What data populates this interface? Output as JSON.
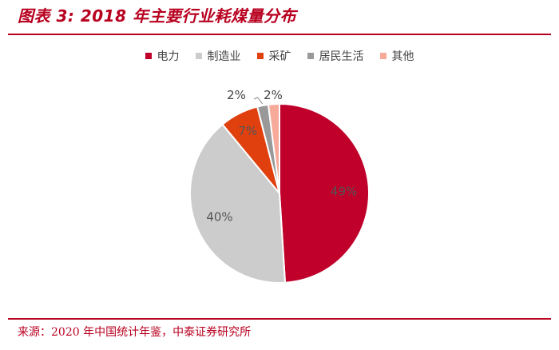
{
  "figure": {
    "title": "图表 3:  2018 年主要行业耗煤量分布",
    "source": "来源：2020 年中国统计年鉴，中泰证券研究所"
  },
  "chart_data": {
    "type": "pie",
    "categories": [
      "电力",
      "制造业",
      "采矿",
      "居民生活",
      "其他"
    ],
    "values": [
      49,
      40,
      7,
      2,
      2
    ],
    "value_labels": [
      "49%",
      "40%",
      "7%",
      "2%",
      "2%"
    ],
    "colors": [
      "#c0002a",
      "#cccccc",
      "#e0400e",
      "#999999",
      "#f7a99a"
    ],
    "label_colors": [
      "#555555",
      "#555555",
      "#555555",
      "#444444",
      "#444444"
    ],
    "legend_position": "top",
    "start_angle_deg": 0,
    "direction": "clockwise"
  }
}
